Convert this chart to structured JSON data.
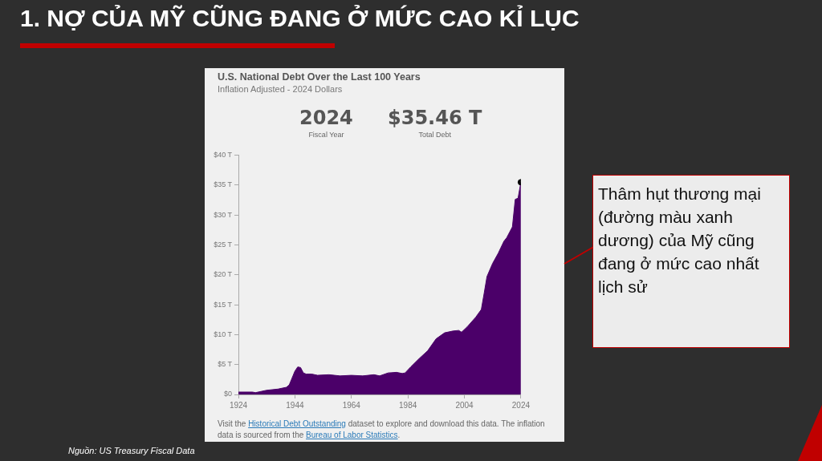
{
  "chart_data": {
    "type": "area",
    "title": "U.S. National Debt Over the Last 100 Years",
    "subtitle": "Inflation Adjusted - 2024 Dollars",
    "annotations": [
      "1. NỢ CỦA MỸ CŨNG ĐANG Ở MỨC CAO KỈ LỤC",
      "2024",
      "Fiscal Year",
      "$35.46 T",
      "Total Debt",
      "Visit the ",
      "Historical Debt Outstanding",
      " dataset to explore and download this data. The inflation data is sourced from the ",
      "Bureau of Labor Statistics",
      ".",
      "Thâm hụt thương mại (đường màu xanh dương) của Mỹ cũng đang ở mức cao nhất lịch sử",
      "Nguồn: US Treasury Fiscal Data"
    ],
    "series": [
      {
        "color": "#4b0069",
        "x": [
          1924,
          1929,
          1930,
          1934,
          1938,
          1941,
          1942,
          1944,
          1945,
          1946,
          1947,
          1948,
          1950,
          1952,
          1956,
          1960,
          1964,
          1968,
          1972,
          1974,
          1977,
          1980,
          1982,
          1983,
          1985,
          1988,
          1991,
          1994,
          1997,
          2000,
          2002,
          2003,
          2005,
          2008,
          2010,
          2011,
          2012,
          2014,
          2016,
          2018,
          2019,
          2021,
          2022,
          2023,
          2024
        ],
        "values": [
          0.4,
          0.4,
          0.3,
          0.7,
          0.9,
          1.2,
          1.6,
          3.9,
          4.6,
          4.5,
          3.6,
          3.4,
          3.4,
          3.2,
          3.3,
          3.1,
          3.2,
          3.1,
          3.3,
          3.1,
          3.6,
          3.7,
          3.5,
          3.6,
          4.6,
          6.0,
          7.3,
          9.3,
          10.3,
          10.6,
          10.7,
          10.4,
          11.3,
          12.9,
          14.2,
          16.9,
          19.7,
          21.9,
          23.6,
          25.6,
          26.2,
          28.0,
          32.6,
          32.8,
          35.46
        ]
      },
      {
        "type": "scatter",
        "color": "#000000",
        "marker": "circle",
        "x": [
          2024
        ],
        "values": [
          35.46
        ]
      }
    ],
    "xlim": [
      1924,
      2024
    ],
    "xticks": [
      1924,
      1944,
      1964,
      1984,
      2004,
      2024
    ],
    "ylim": [
      0,
      40
    ],
    "yticks": [
      {
        "value": 0,
        "label": "$0"
      },
      {
        "value": 5,
        "label": "$5 T"
      },
      {
        "value": 10,
        "label": "$10 T"
      },
      {
        "value": 15,
        "label": "$15 T"
      },
      {
        "value": 20,
        "label": "$20 T"
      },
      {
        "value": 25,
        "label": "$25 T"
      },
      {
        "value": 30,
        "label": "$30 T"
      },
      {
        "value": 35,
        "label": "$35 T"
      },
      {
        "value": 40,
        "label": "$40 T"
      }
    ],
    "grid": false,
    "legend": false
  }
}
